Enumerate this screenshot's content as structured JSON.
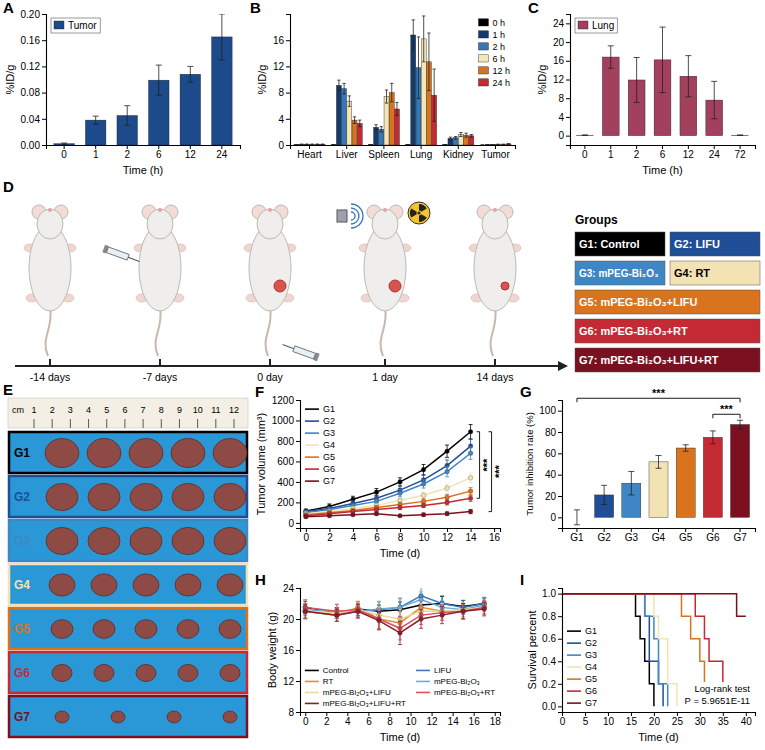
{
  "chart_data": [
    {
      "panel": "A",
      "type": "bar",
      "categories": [
        "0",
        "1",
        "2",
        "6",
        "12",
        "24"
      ],
      "series": [
        {
          "name": "Tumor",
          "color": "#1c4a8a",
          "values": [
            0.002,
            0.038,
            0.045,
            0.099,
            0.108,
            0.165
          ],
          "errors": [
            0.001,
            0.006,
            0.015,
            0.023,
            0.012,
            0.035
          ]
        }
      ],
      "x_label": "Time (h)",
      "y_label": "%ID/g",
      "ylim": [
        0,
        0.2
      ],
      "yticks": [
        {
          "value": 0,
          "label": "0.00"
        },
        {
          "value": 0.04,
          "label": "0.04"
        },
        {
          "value": 0.08,
          "label": "0.08"
        },
        {
          "value": 0.12,
          "label": "0.12"
        },
        {
          "value": 0.16,
          "label": "0.16"
        },
        {
          "value": 0.2,
          "label": "0.20"
        }
      ],
      "legend": "upper left"
    },
    {
      "panel": "B",
      "type": "bar",
      "categories": [
        "Heart",
        "Liver",
        "Spleen",
        "Lung",
        "Kidney",
        "Tumor"
      ],
      "series": [
        {
          "name": "0 h",
          "color": "#000000",
          "values": [
            0.05,
            0.05,
            0.05,
            0.05,
            0.05,
            0.002
          ],
          "errors": [
            0.02,
            0.02,
            0.02,
            0.02,
            0.02,
            0.001
          ]
        },
        {
          "name": "1 h",
          "color": "#143a6e",
          "values": [
            0.1,
            9.1,
            2.7,
            16.8,
            1.0,
            0.038
          ],
          "errors": [
            0.05,
            0.8,
            0.4,
            2.3,
            0.2,
            0.006
          ]
        },
        {
          "name": "2 h",
          "color": "#3478b8",
          "values": [
            0.1,
            8.6,
            2.4,
            11.8,
            1.1,
            0.045
          ],
          "errors": [
            0.05,
            0.8,
            0.4,
            4.7,
            0.2,
            0.015
          ]
        },
        {
          "name": "6 h",
          "color": "#f5e6b8",
          "values": [
            0.1,
            6.7,
            7.4,
            16.2,
            1.6,
            0.099
          ],
          "errors": [
            0.05,
            0.8,
            1.0,
            3.5,
            0.3,
            0.023
          ]
        },
        {
          "name": "12 h",
          "color": "#d9731e",
          "values": [
            0.1,
            3.8,
            8.0,
            12.7,
            1.5,
            0.108
          ],
          "errors": [
            0.05,
            0.5,
            1.4,
            4.4,
            0.3,
            0.012
          ]
        },
        {
          "name": "24 h",
          "color": "#c42a33",
          "values": [
            0.1,
            3.3,
            5.5,
            7.6,
            1.4,
            0.165
          ],
          "errors": [
            0.05,
            0.5,
            1.0,
            4.0,
            0.2,
            0.035
          ]
        }
      ],
      "y_label": "%ID/g",
      "ylim": [
        0,
        20
      ],
      "yticks": [
        0,
        4,
        8,
        12,
        16
      ],
      "legend": "upper right"
    },
    {
      "panel": "C",
      "type": "bar",
      "categories": [
        "0",
        "1",
        "2",
        "6",
        "12",
        "24",
        "72"
      ],
      "series": [
        {
          "name": "Lung",
          "color": "#a3405d",
          "values": [
            0.1,
            16.8,
            11.9,
            16.2,
            12.7,
            7.6,
            0.1
          ],
          "errors": [
            0.05,
            2.4,
            4.8,
            7.0,
            4.4,
            4.0,
            0.05
          ]
        }
      ],
      "x_label": "Time (h)",
      "y_label": "%ID/g",
      "ylim": [
        -2,
        26
      ],
      "yticks": [
        0,
        4,
        8,
        12,
        16,
        20,
        24
      ],
      "legend": "upper left"
    },
    {
      "panel": "F",
      "type": "line",
      "marker": "circle",
      "x": [
        0,
        2,
        4,
        6,
        8,
        10,
        12,
        14
      ],
      "xlim": [
        -0.5,
        16.5
      ],
      "xticks": [
        0,
        2,
        4,
        6,
        8,
        10,
        12,
        14,
        16
      ],
      "ylim": [
        -50,
        1200
      ],
      "yticks": [
        0,
        200,
        400,
        600,
        800,
        1000,
        1200
      ],
      "x_label": "Time (d)",
      "y_label": "Tumor volume (mm³)",
      "legend": "upper left",
      "annotations": [
        "***",
        "***"
      ],
      "series": [
        {
          "name": "G1",
          "color": "#000000",
          "values": [
            115,
            160,
            230,
            300,
            400,
            520,
            700,
            890
          ],
          "errors": [
            20,
            25,
            30,
            35,
            40,
            50,
            60,
            70
          ]
        },
        {
          "name": "G2",
          "color": "#1f4e96",
          "values": [
            110,
            140,
            190,
            240,
            320,
            420,
            560,
            750
          ],
          "errors": [
            15,
            20,
            25,
            30,
            40,
            45,
            55,
            65
          ]
        },
        {
          "name": "G3",
          "color": "#3f86c4",
          "values": [
            100,
            130,
            170,
            210,
            290,
            380,
            500,
            680
          ],
          "errors": [
            15,
            20,
            20,
            25,
            35,
            40,
            50,
            60
          ]
        },
        {
          "name": "G4",
          "color": "#f3e2b3",
          "values": [
            90,
            110,
            140,
            170,
            220,
            270,
            340,
            440
          ],
          "errors": [
            15,
            15,
            20,
            20,
            25,
            30,
            35,
            45
          ]
        },
        {
          "name": "G5",
          "color": "#d9731e",
          "values": [
            80,
            100,
            120,
            150,
            180,
            210,
            250,
            310
          ],
          "errors": [
            10,
            15,
            15,
            20,
            20,
            25,
            30,
            35
          ]
        },
        {
          "name": "G6",
          "color": "#c42a33",
          "values": [
            70,
            90,
            110,
            130,
            150,
            170,
            200,
            240
          ],
          "errors": [
            10,
            10,
            15,
            15,
            20,
            20,
            25,
            30
          ]
        },
        {
          "name": "G7",
          "color": "#7b1020",
          "values": [
            60,
            70,
            80,
            90,
            70,
            80,
            90,
            110
          ],
          "errors": [
            10,
            10,
            10,
            15,
            10,
            15,
            15,
            20
          ]
        }
      ]
    },
    {
      "panel": "G",
      "type": "bar",
      "categories": [
        "G1",
        "G2",
        "G3",
        "G4",
        "G5",
        "G6",
        "G7"
      ],
      "values": [
        0,
        21,
        32,
        52,
        65,
        75,
        87
      ],
      "errors": [
        7,
        9,
        11,
        6,
        3,
        6,
        4
      ],
      "colors": [
        "#000000",
        "#1f4e96",
        "#3f86c4",
        "#f3e2b3",
        "#d9731e",
        "#c42a33",
        "#7b1020"
      ],
      "ylim": [
        -10,
        110
      ],
      "yticks": [
        0,
        20,
        40,
        60,
        80,
        100
      ],
      "y_label": "Tumor inhibition rate (%)",
      "annotations": [
        "***",
        "***"
      ]
    },
    {
      "panel": "H",
      "type": "line",
      "marker": "circle",
      "x": [
        0,
        3,
        5,
        7,
        9,
        11,
        13,
        15,
        17
      ],
      "xlim": [
        -0.5,
        18.5
      ],
      "xticks": [
        0,
        2,
        4,
        6,
        8,
        10,
        12,
        14,
        16,
        18
      ],
      "ylim": [
        8,
        24
      ],
      "yticks": [
        8,
        12,
        16,
        20,
        24
      ],
      "x_label": "Time (d)",
      "y_label": "Body weight (g)",
      "legend": "lower center",
      "series": [
        {
          "name": "Control",
          "color": "#000000",
          "values": [
            21.5,
            20.8,
            21.3,
            21.0,
            21.2,
            21.8,
            22.0,
            21.6,
            22.0
          ],
          "errors": [
            0.8,
            0.7,
            0.9,
            0.8,
            1.0,
            1.0,
            0.9,
            0.8,
            0.7
          ]
        },
        {
          "name": "LIFU",
          "color": "#3a78c2",
          "values": [
            21.0,
            20.5,
            21.0,
            21.2,
            21.5,
            23.0,
            22.0,
            21.5,
            22.0
          ],
          "errors": [
            1.0,
            0.8,
            0.8,
            1.0,
            1.2,
            1.1,
            1.0,
            0.9,
            0.8
          ]
        },
        {
          "name": "RT",
          "color": "#e0902f",
          "values": [
            21.0,
            20.5,
            21.5,
            20.0,
            19.5,
            21.5,
            21.0,
            21.0,
            21.5
          ],
          "errors": [
            0.9,
            0.8,
            0.8,
            1.2,
            1.4,
            1.0,
            1.0,
            0.9,
            0.8
          ]
        },
        {
          "name": "mPEG-Bi₂O₃",
          "color": "#6aaad8",
          "values": [
            21.2,
            21.0,
            21.0,
            21.3,
            21.5,
            22.5,
            21.5,
            21.2,
            21.8
          ],
          "errors": [
            0.8,
            0.9,
            0.8,
            1.0,
            1.1,
            1.0,
            0.9,
            0.9,
            0.8
          ]
        },
        {
          "name": "mPEG-Bi₂O₃+LIFU",
          "color": "#efd79c",
          "values": [
            21.0,
            20.8,
            21.2,
            20.5,
            20.0,
            21.0,
            21.0,
            21.2,
            21.5
          ],
          "errors": [
            0.9,
            0.8,
            0.9,
            1.1,
            1.2,
            1.0,
            1.0,
            0.9,
            0.8
          ]
        },
        {
          "name": "mPEG-Bi₂O₃+RT",
          "color": "#e0505a",
          "values": [
            21.5,
            21.0,
            21.2,
            20.0,
            18.8,
            20.5,
            20.8,
            21.0,
            21.5
          ],
          "errors": [
            1.0,
            0.9,
            0.8,
            1.3,
            1.5,
            1.2,
            1.0,
            1.0,
            0.9
          ]
        },
        {
          "name": "mPEG-Bi₂O₃+LIFU+RT",
          "color": "#8c1b2a",
          "values": [
            21.0,
            20.5,
            21.0,
            19.8,
            18.2,
            20.0,
            20.5,
            21.0,
            21.3
          ],
          "errors": [
            0.9,
            0.8,
            0.9,
            1.2,
            1.5,
            1.2,
            1.1,
            1.0,
            0.9
          ]
        }
      ]
    },
    {
      "panel": "I",
      "type": "line",
      "line_style": "step",
      "xlim": [
        0,
        42
      ],
      "xticks": [
        0,
        5,
        10,
        15,
        20,
        25,
        30,
        35,
        40
      ],
      "ylim": [
        -0.05,
        1.05
      ],
      "yticks": [
        {
          "value": 0,
          "label": "0.0"
        },
        {
          "value": 0.2,
          "label": "0.2"
        },
        {
          "value": 0.4,
          "label": "0.4"
        },
        {
          "value": 0.6,
          "label": "0.6"
        },
        {
          "value": 0.8,
          "label": "0.8"
        },
        {
          "value": 1,
          "label": "1.0"
        }
      ],
      "x_label": "Time (d)",
      "y_label": "Survival percent",
      "legend": "lower left",
      "annotations": [
        "Log-rank test",
        "P = 5.9651E-11"
      ],
      "series": [
        {
          "name": "G1",
          "color": "#000000",
          "x": [
            0,
            16,
            17,
            18,
            19,
            20
          ],
          "values": [
            1,
            0.8,
            0.6,
            0.4,
            0.2,
            0
          ]
        },
        {
          "name": "G2",
          "color": "#1f4e96",
          "x": [
            0,
            18,
            19,
            21,
            22
          ],
          "values": [
            1,
            0.8,
            0.4,
            0.2,
            0
          ]
        },
        {
          "name": "G3",
          "color": "#3f86c4",
          "x": [
            0,
            18,
            20,
            21,
            23
          ],
          "values": [
            1,
            0.8,
            0.6,
            0.2,
            0
          ]
        },
        {
          "name": "G4",
          "color": "#f3e2b3",
          "x": [
            0,
            20,
            21,
            23,
            25
          ],
          "values": [
            1,
            0.8,
            0.6,
            0.2,
            0
          ]
        },
        {
          "name": "G5",
          "color": "#d9731e",
          "x": [
            0,
            26,
            28,
            30,
            31,
            33
          ],
          "values": [
            1,
            0.8,
            0.6,
            0.4,
            0.2,
            0
          ]
        },
        {
          "name": "G6",
          "color": "#c42a33",
          "x": [
            0,
            29,
            31,
            32,
            35,
            38
          ],
          "values": [
            1,
            0.8,
            0.6,
            0.4,
            0.2,
            0
          ]
        },
        {
          "name": "G7",
          "color": "#7b1020",
          "x": [
            0,
            38,
            40
          ],
          "values": [
            1,
            0.8,
            0.8
          ]
        }
      ]
    }
  ],
  "panel_d": {
    "panel": "D",
    "timeline": [
      "-14 days",
      "-7 days",
      "0 day",
      "1 day",
      "14 days"
    ],
    "groups_title": "Groups",
    "groups": [
      {
        "label": "G1: Control",
        "color": "#000000"
      },
      {
        "label": "G2: LIFU",
        "color": "#1f4e96"
      },
      {
        "label": "G3: mPEG-Bi₂O₃",
        "color": "#3f86c4"
      },
      {
        "label": "G4: RT",
        "color": "#f3e2b3"
      },
      {
        "label": "G5: mPEG-Bi₂O₃+LIFU",
        "color": "#d9731e"
      },
      {
        "label": "G6: mPEG-Bi₂O₃+RT",
        "color": "#c42a33"
      },
      {
        "label": "G7: mPEG-Bi₂O₃+LIFU+RT",
        "color": "#7b1020"
      }
    ]
  },
  "panel_e": {
    "panel": "E",
    "ruler": {
      "unit": "cm",
      "marks": [
        1,
        2,
        3,
        4,
        5,
        6,
        7,
        8,
        9,
        10,
        11,
        12
      ]
    },
    "rows": [
      {
        "label": "G1",
        "color": "#000000"
      },
      {
        "label": "G2",
        "color": "#1f4e96"
      },
      {
        "label": "G3",
        "color": "#3f86c4"
      },
      {
        "label": "G4",
        "color": "#f3e2b3"
      },
      {
        "label": "G5",
        "color": "#d9731e"
      },
      {
        "label": "G6",
        "color": "#c42a33"
      },
      {
        "label": "G7",
        "color": "#7b1020"
      }
    ]
  }
}
